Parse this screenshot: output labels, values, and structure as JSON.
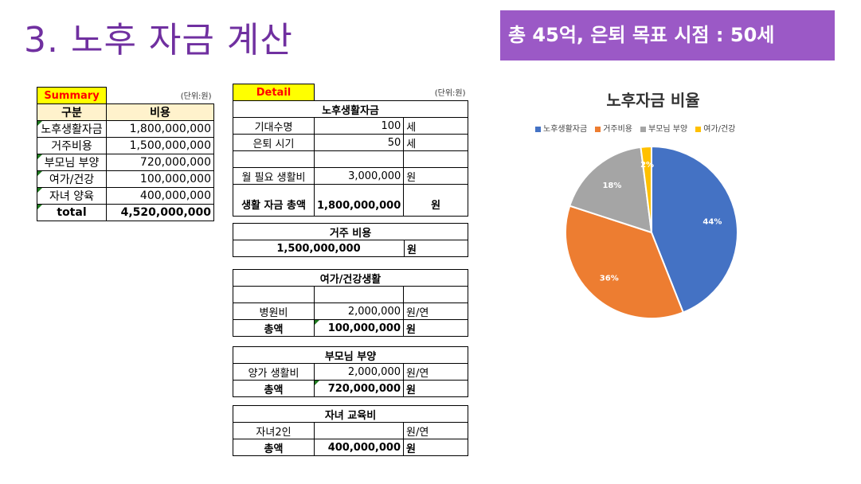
{
  "title": "3. 노후 자금 계산",
  "banner": "총 45억, 은퇴 목표 시점 : 50세",
  "summary": {
    "label": "Summary",
    "unit": "(단위:원)",
    "col1": "구분",
    "col2": "비용",
    "rows": [
      {
        "name": "노후생활자금",
        "value": "1,800,000,000"
      },
      {
        "name": "거주비용",
        "value": "1,500,000,000"
      },
      {
        "name": "부모님 부양",
        "value": "720,000,000"
      },
      {
        "name": "여가/건강",
        "value": "100,000,000"
      },
      {
        "name": "자녀 양육",
        "value": "400,000,000"
      }
    ],
    "total_label": "total",
    "total_value": "4,520,000,000"
  },
  "detail": {
    "label": "Detail",
    "unit": "(단위:원)",
    "living": {
      "title": "노후생활자금",
      "life_label": "기대수명",
      "life_value": "100",
      "life_unit": "세",
      "retire_label": "은퇴 시기",
      "retire_value": "50",
      "retire_unit": "세",
      "monthly_label": "월 필요 생활비",
      "monthly_value": "3,000,000",
      "monthly_unit": "원",
      "total_label": "생활 자금 총액",
      "total_value": "1,800,000,000",
      "total_unit": "원"
    },
    "housing": {
      "title": "거주 비용",
      "value": "1,500,000,000",
      "unit": "원"
    },
    "leisure": {
      "title": "여가/건강생활",
      "hospital_label": "병원비",
      "hospital_value": "2,000,000",
      "hospital_unit": "원/연",
      "total_label": "총액",
      "total_value": "100,000,000",
      "total_unit": "원"
    },
    "parents": {
      "title": "부모님 부양",
      "support_label": "양가 생활비",
      "support_value": "2,000,000",
      "support_unit": "원/연",
      "total_label": "총액",
      "total_value": "720,000,000",
      "total_unit": "원"
    },
    "children": {
      "title": "자녀 교육비",
      "kids_label": "자녀2인",
      "kids_unit": "원/연",
      "total_label": "총액",
      "total_value": "400,000,000",
      "total_unit": "원"
    }
  },
  "chart_data": {
    "type": "pie",
    "title": "노후자금 비율",
    "categories": [
      "노후생활자금",
      "거주비용",
      "부모님 부양",
      "여가/건강"
    ],
    "values": [
      44,
      36,
      18,
      2
    ],
    "labels": [
      "44%",
      "36%",
      "18%",
      "2%"
    ],
    "colors": [
      "#4472C4",
      "#ED7D31",
      "#A5A5A5",
      "#FFC000"
    ],
    "legend": "top"
  }
}
